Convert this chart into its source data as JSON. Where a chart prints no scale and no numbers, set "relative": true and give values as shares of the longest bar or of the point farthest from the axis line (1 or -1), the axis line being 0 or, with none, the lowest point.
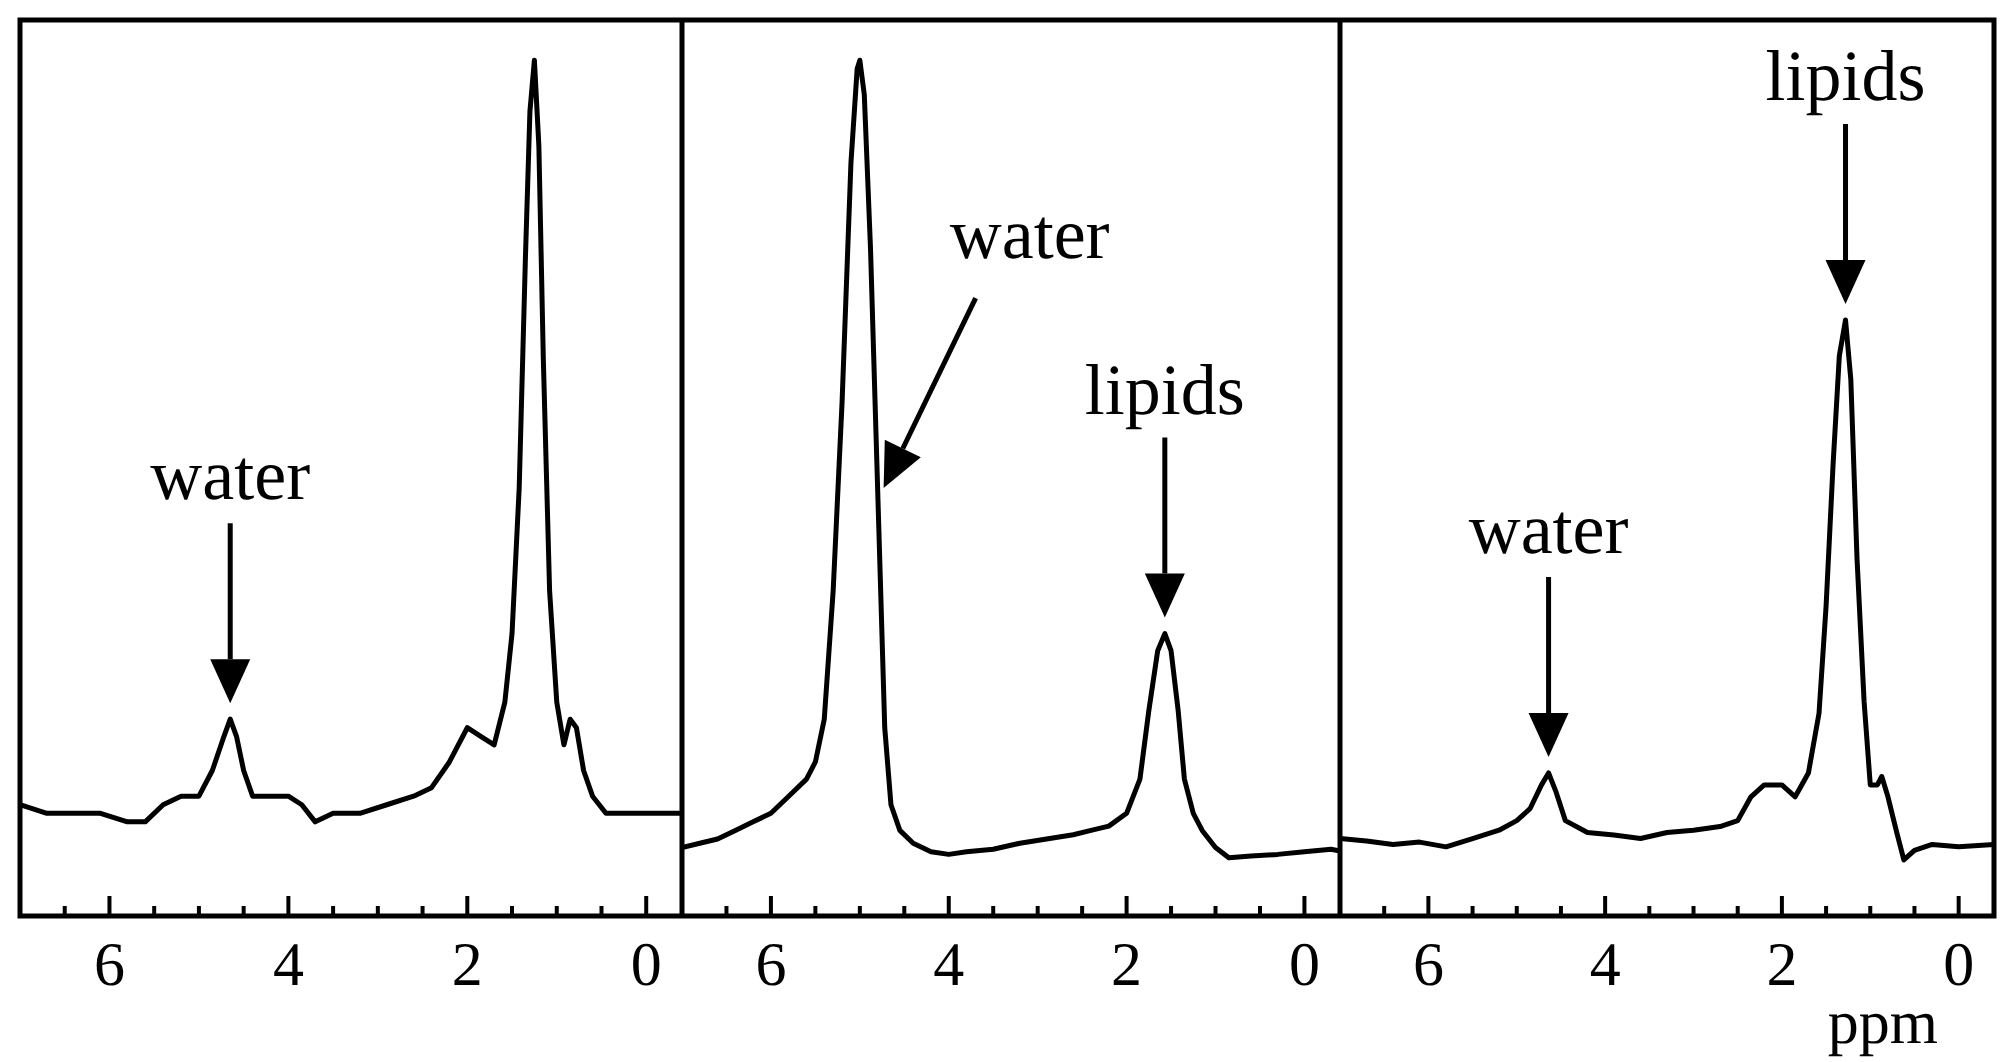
{
  "chart_data": [
    {
      "type": "line",
      "relative": true,
      "color": "#000000",
      "xlim": [
        7,
        -0.4
      ],
      "xticks": [
        {
          "value": 6.5,
          "label": null
        },
        6,
        {
          "value": 5.5,
          "label": null
        },
        {
          "value": 5,
          "label": null
        },
        {
          "value": 4.5,
          "label": null
        },
        4,
        {
          "value": 3.5,
          "label": null
        },
        {
          "value": 3,
          "label": null
        },
        {
          "value": 2.5,
          "label": null
        },
        2,
        {
          "value": 1.5,
          "label": null
        },
        {
          "value": 1,
          "label": null
        },
        {
          "value": 0.5,
          "label": null
        },
        0
      ],
      "x": [
        7.0,
        6.7,
        6.4,
        6.1,
        5.8,
        5.6,
        5.4,
        5.2,
        5.0,
        4.85,
        4.72,
        4.65,
        4.58,
        4.5,
        4.4,
        4.2,
        4.0,
        3.85,
        3.7,
        3.5,
        3.2,
        2.9,
        2.6,
        2.4,
        2.2,
        2.0,
        1.85,
        1.7,
        1.58,
        1.5,
        1.42,
        1.35,
        1.3,
        1.25,
        1.2,
        1.15,
        1.08,
        1.0,
        0.92,
        0.85,
        0.78,
        0.7,
        0.6,
        0.45,
        0.2,
        0,
        -0.2,
        -0.4
      ],
      "values": [
        0.13,
        0.12,
        0.12,
        0.12,
        0.11,
        0.11,
        0.13,
        0.14,
        0.14,
        0.17,
        0.21,
        0.23,
        0.21,
        0.17,
        0.14,
        0.14,
        0.14,
        0.13,
        0.11,
        0.12,
        0.12,
        0.13,
        0.14,
        0.15,
        0.18,
        0.22,
        0.21,
        0.2,
        0.25,
        0.33,
        0.5,
        0.77,
        0.94,
        1,
        0.9,
        0.65,
        0.38,
        0.25,
        0.2,
        0.23,
        0.22,
        0.17,
        0.14,
        0.12,
        0.12,
        0.12,
        0.12,
        0.12
      ],
      "annotations": [
        {
          "text": "water",
          "x": 4.65,
          "y": 0.23
        }
      ]
    },
    {
      "type": "line",
      "relative": true,
      "color": "#000000",
      "xlim": [
        7,
        -0.4
      ],
      "xticks": [
        {
          "value": 6.5,
          "label": null
        },
        6,
        {
          "value": 5.5,
          "label": null
        },
        {
          "value": 5,
          "label": null
        },
        {
          "value": 4.5,
          "label": null
        },
        4,
        {
          "value": 3.5,
          "label": null
        },
        {
          "value": 3,
          "label": null
        },
        {
          "value": 2.5,
          "label": null
        },
        2,
        {
          "value": 1.5,
          "label": null
        },
        {
          "value": 1,
          "label": null
        },
        {
          "value": 0.5,
          "label": null
        },
        0
      ],
      "x": [
        7.0,
        6.8,
        6.6,
        6.4,
        6.2,
        6.0,
        5.8,
        5.6,
        5.5,
        5.4,
        5.3,
        5.2,
        5.1,
        5.03,
        5.0,
        4.95,
        4.88,
        4.8,
        4.72,
        4.65,
        4.55,
        4.4,
        4.2,
        4.0,
        3.8,
        3.5,
        3.2,
        2.9,
        2.6,
        2.4,
        2.2,
        2.0,
        1.85,
        1.75,
        1.65,
        1.57,
        1.5,
        1.42,
        1.35,
        1.25,
        1.15,
        1.0,
        0.85,
        0.6,
        0.3,
        0,
        -0.3,
        -0.4
      ],
      "values": [
        0.08,
        0.085,
        0.09,
        0.1,
        0.11,
        0.12,
        0.14,
        0.16,
        0.18,
        0.23,
        0.38,
        0.6,
        0.88,
        0.99,
        1,
        0.96,
        0.78,
        0.5,
        0.22,
        0.13,
        0.1,
        0.085,
        0.075,
        0.072,
        0.075,
        0.078,
        0.085,
        0.09,
        0.095,
        0.1,
        0.105,
        0.12,
        0.16,
        0.24,
        0.31,
        0.33,
        0.31,
        0.24,
        0.16,
        0.12,
        0.1,
        0.08,
        0.068,
        0.07,
        0.072,
        0.075,
        0.078,
        0.076
      ],
      "annotations": [
        "water",
        {
          "text": "lipids",
          "x": 1.57,
          "y": 0.33
        }
      ]
    },
    {
      "type": "line",
      "relative": true,
      "color": "#000000",
      "xlim": [
        7,
        -0.4
      ],
      "xticks": [
        {
          "value": 6.5,
          "label": null
        },
        6,
        {
          "value": 5.5,
          "label": null
        },
        {
          "value": 5,
          "label": null
        },
        {
          "value": 4.5,
          "label": null
        },
        4,
        {
          "value": 3.5,
          "label": null
        },
        {
          "value": 3,
          "label": null
        },
        {
          "value": 2.5,
          "label": null
        },
        2,
        {
          "value": 1.5,
          "label": null
        },
        {
          "value": 1,
          "label": null
        },
        {
          "value": 0.5,
          "label": null
        },
        0
      ],
      "xlabel": "ppm",
      "x": [
        7.0,
        6.7,
        6.4,
        6.1,
        5.8,
        5.5,
        5.2,
        5.0,
        4.85,
        4.72,
        4.64,
        4.56,
        4.45,
        4.2,
        3.9,
        3.6,
        3.3,
        3.0,
        2.7,
        2.5,
        2.35,
        2.2,
        2.0,
        1.85,
        1.7,
        1.58,
        1.5,
        1.42,
        1.35,
        1.28,
        1.22,
        1.15,
        1.07,
        1.0,
        0.92,
        0.87,
        0.8,
        0.7,
        0.62,
        0.5,
        0.3,
        0,
        -0.4
      ],
      "values": [
        0.13,
        0.126,
        0.12,
        0.124,
        0.116,
        0.13,
        0.144,
        0.16,
        0.18,
        0.22,
        0.24,
        0.21,
        0.16,
        0.14,
        0.136,
        0.13,
        0.14,
        0.144,
        0.15,
        0.16,
        0.2,
        0.22,
        0.22,
        0.2,
        0.24,
        0.34,
        0.52,
        0.76,
        0.94,
        1,
        0.9,
        0.6,
        0.36,
        0.22,
        0.22,
        0.234,
        0.2,
        0.14,
        0.094,
        0.11,
        0.12,
        0.116,
        0.12
      ],
      "annotations": [
        {
          "text": "water",
          "x": 4.64,
          "y": 0.24
        },
        {
          "text": "lipids",
          "x": 1.28,
          "y": 1
        }
      ]
    }
  ]
}
